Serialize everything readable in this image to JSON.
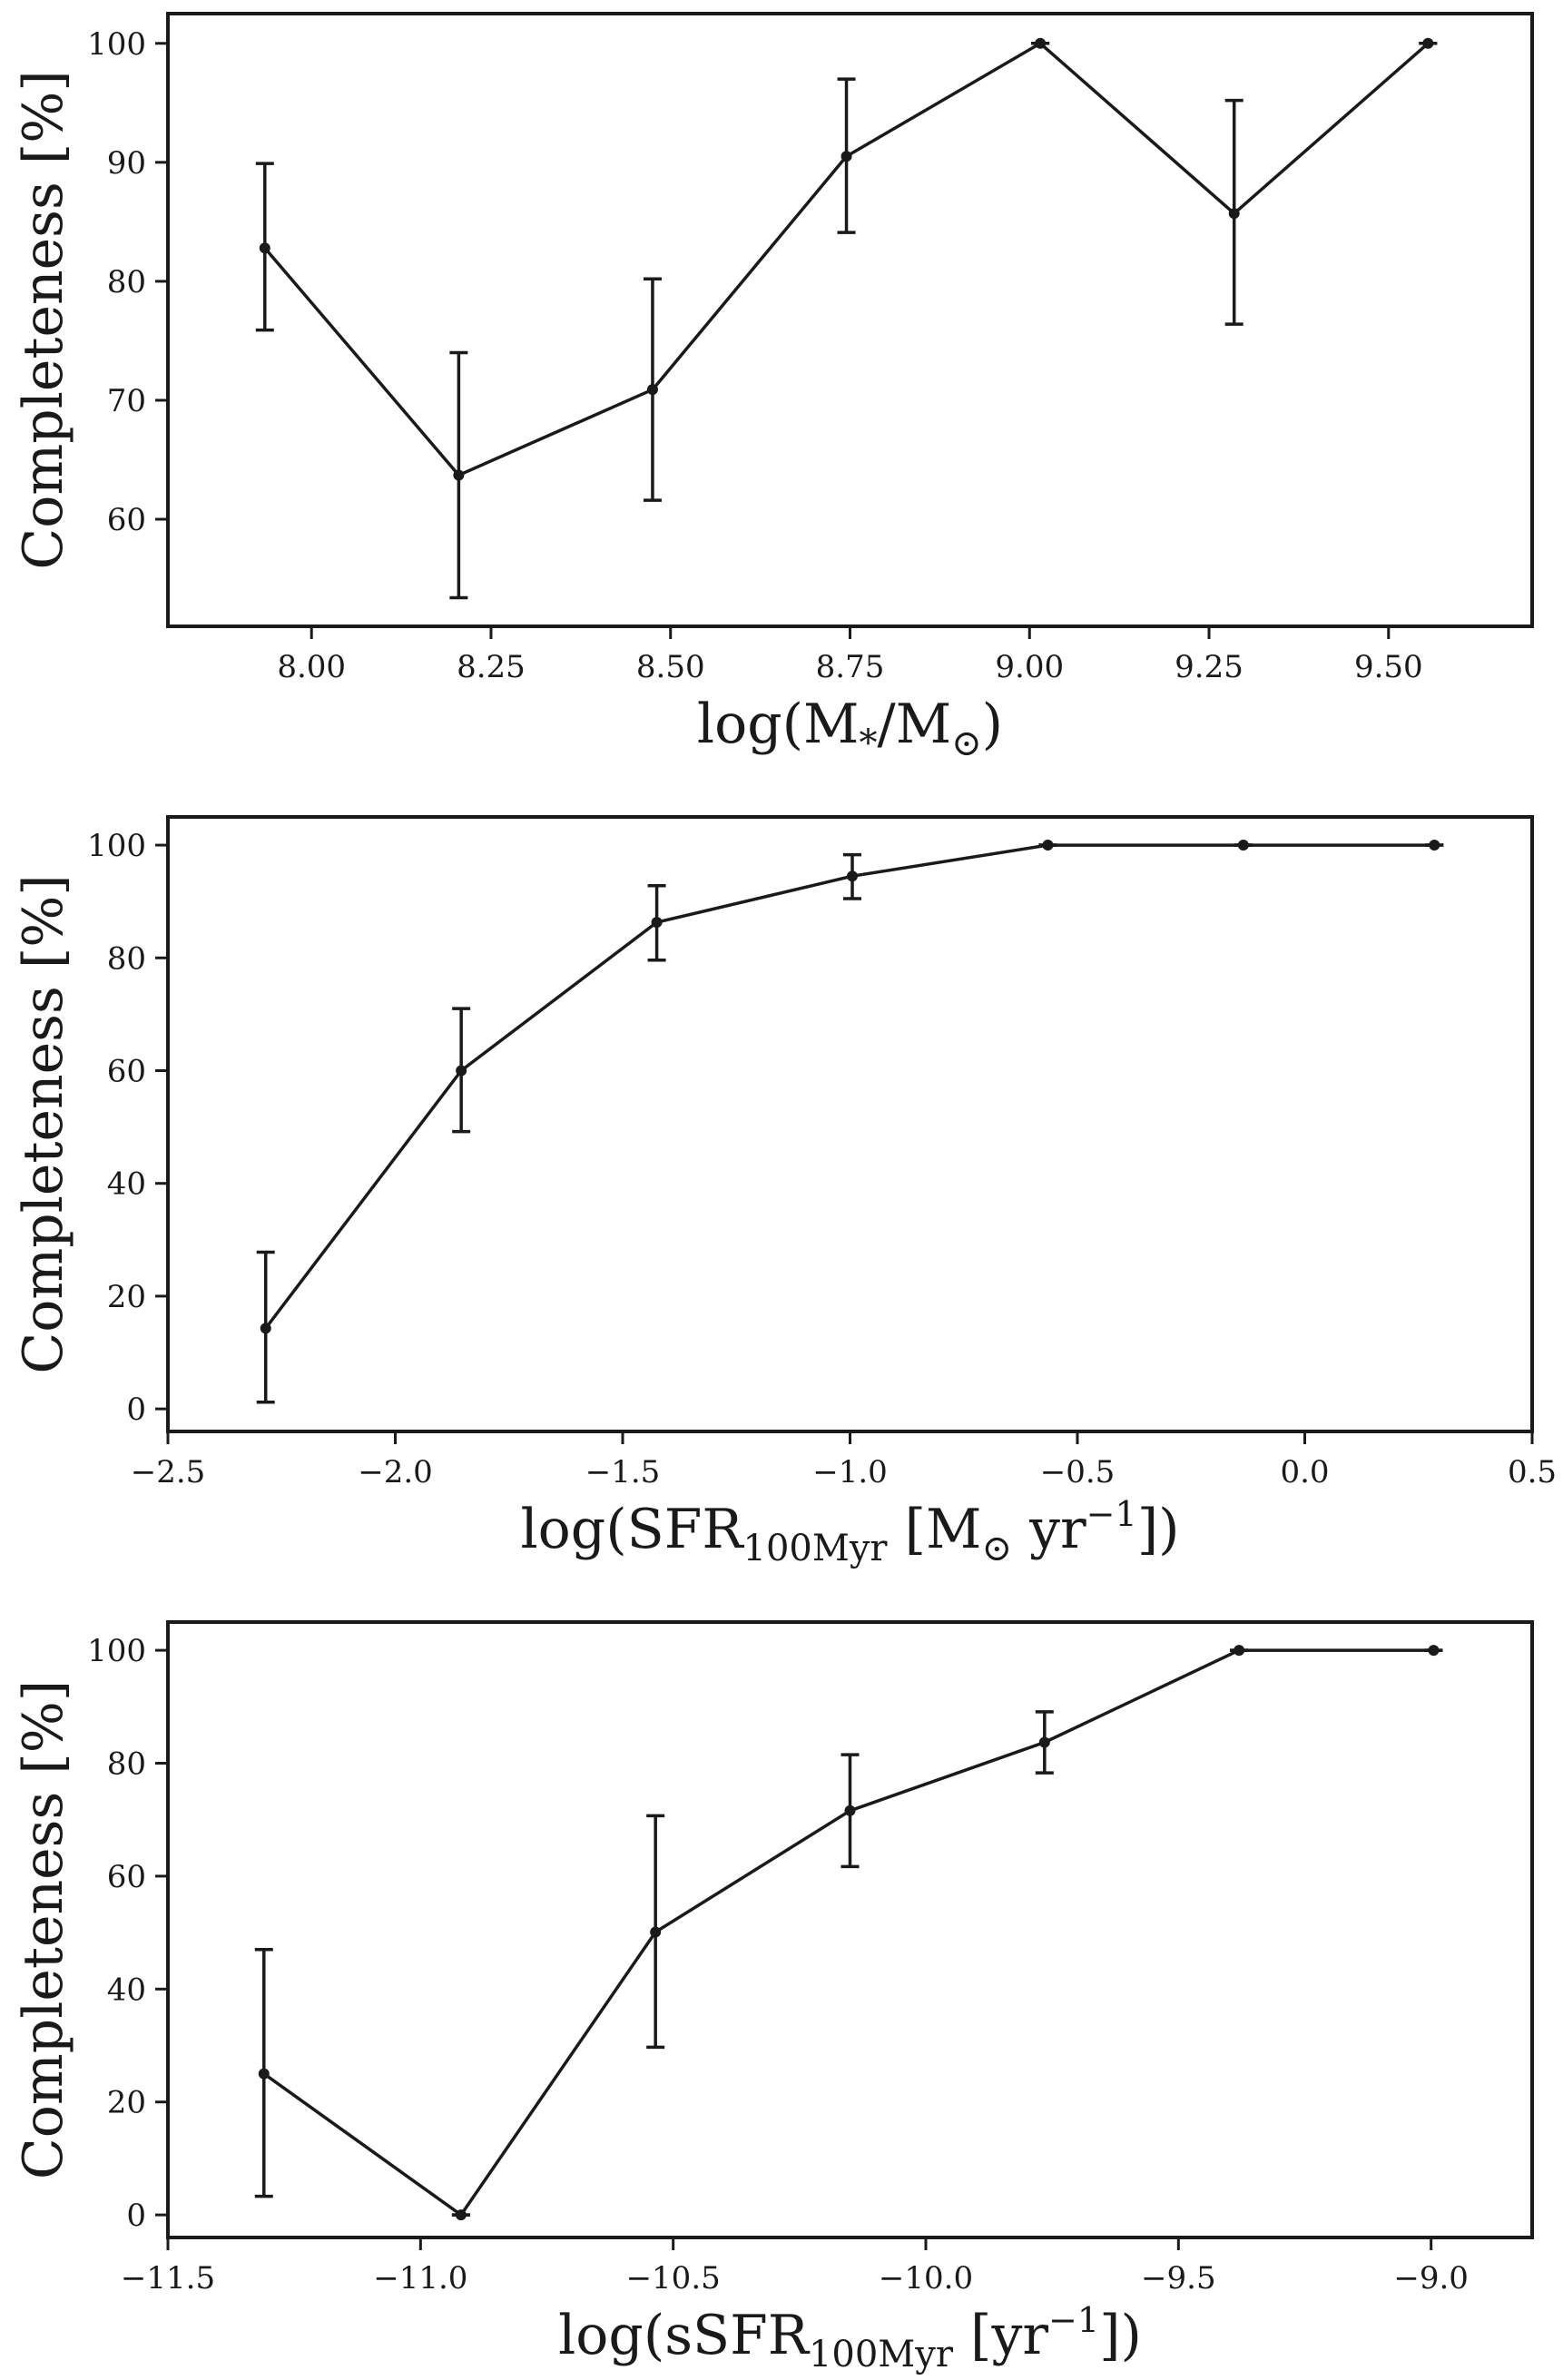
{
  "chart_data": [
    {
      "type": "line",
      "panel": "top",
      "xlabel": {
        "main": "log(M",
        "sub": "*",
        "mid": "/M",
        "sub2": "⊙",
        "end": ")"
      },
      "ylabel": "Completeness [%]",
      "xlim": [
        7.8,
        9.7
      ],
      "ylim": [
        51,
        102.5
      ],
      "xticks": [
        8.0,
        8.25,
        8.5,
        8.75,
        9.0,
        9.25,
        9.5
      ],
      "xtick_labels": [
        "8.00",
        "8.25",
        "8.50",
        "8.75",
        "9.00",
        "9.25",
        "9.50"
      ],
      "yticks": [
        60,
        70,
        80,
        90,
        100
      ],
      "ytick_labels": [
        "60",
        "70",
        "80",
        "90",
        "100"
      ],
      "grid": false,
      "series": [
        {
          "x": [
            7.935,
            8.205,
            8.475,
            8.745,
            9.015,
            9.285,
            9.555
          ],
          "y": [
            82.8,
            63.7,
            70.9,
            90.5,
            100,
            85.7,
            100
          ],
          "yerr_low": [
            75.9,
            53.4,
            61.6,
            84.1,
            100,
            76.4,
            100
          ],
          "yerr_high": [
            89.9,
            74.0,
            80.2,
            97.0,
            100,
            95.2,
            100
          ]
        }
      ]
    },
    {
      "type": "line",
      "panel": "middle",
      "xlabel": {
        "main": "log(SFR",
        "sub": "100Myr",
        "mid": " [M",
        "sub2": "⊙",
        "mid2": " yr",
        "sup": "−1",
        "end": "])"
      },
      "ylabel": "Completeness [%]",
      "xlim": [
        -2.5,
        0.5
      ],
      "ylim": [
        -4,
        105
      ],
      "xticks": [
        -2.5,
        -2.0,
        -1.5,
        -1.0,
        -0.5,
        0.0,
        0.5
      ],
      "xtick_labels": [
        "−2.5",
        "−2.0",
        "−1.5",
        "−1.0",
        "−0.5",
        "0.0",
        "0.5"
      ],
      "yticks": [
        0,
        20,
        40,
        60,
        80,
        100
      ],
      "ytick_labels": [
        "0",
        "20",
        "40",
        "60",
        "80",
        "100"
      ],
      "grid": false,
      "series": [
        {
          "x": [
            -2.285,
            -1.855,
            -1.425,
            -0.995,
            -0.565,
            -0.135,
            0.285
          ],
          "y": [
            14.3,
            60.0,
            86.3,
            94.5,
            100,
            100,
            100
          ],
          "yerr_low": [
            1.2,
            49.2,
            79.6,
            90.5,
            100,
            100,
            100
          ],
          "yerr_high": [
            27.8,
            71.0,
            92.8,
            98.3,
            100,
            100,
            100
          ]
        }
      ]
    },
    {
      "type": "line",
      "panel": "bottom",
      "xlabel": {
        "main": "log(sSFR",
        "sub": "100Myr",
        "mid": " [yr",
        "sup": "−1",
        "end": "])"
      },
      "ylabel": "Completeness [%]",
      "xlim": [
        -11.5,
        -8.8
      ],
      "ylim": [
        -4,
        105
      ],
      "xticks": [
        -11.5,
        -11.0,
        -10.5,
        -10.0,
        -9.5,
        -9.0
      ],
      "xtick_labels": [
        "−11.5",
        "−11.0",
        "−10.5",
        "−10.0",
        "−9.5",
        "−9.0"
      ],
      "yticks": [
        0,
        20,
        40,
        60,
        80,
        100
      ],
      "ytick_labels": [
        "0",
        "20",
        "40",
        "60",
        "80",
        "100"
      ],
      "grid": false,
      "series": [
        {
          "x": [
            -11.31,
            -10.92,
            -10.535,
            -10.15,
            -9.765,
            -9.38,
            -8.995
          ],
          "y": [
            25.0,
            0,
            50.1,
            71.6,
            83.7,
            100,
            100
          ],
          "yerr_low": [
            3.3,
            0,
            29.7,
            61.7,
            78.3,
            100,
            100
          ],
          "yerr_high": [
            47.0,
            0,
            70.7,
            81.5,
            89.1,
            100,
            100
          ]
        }
      ]
    }
  ]
}
